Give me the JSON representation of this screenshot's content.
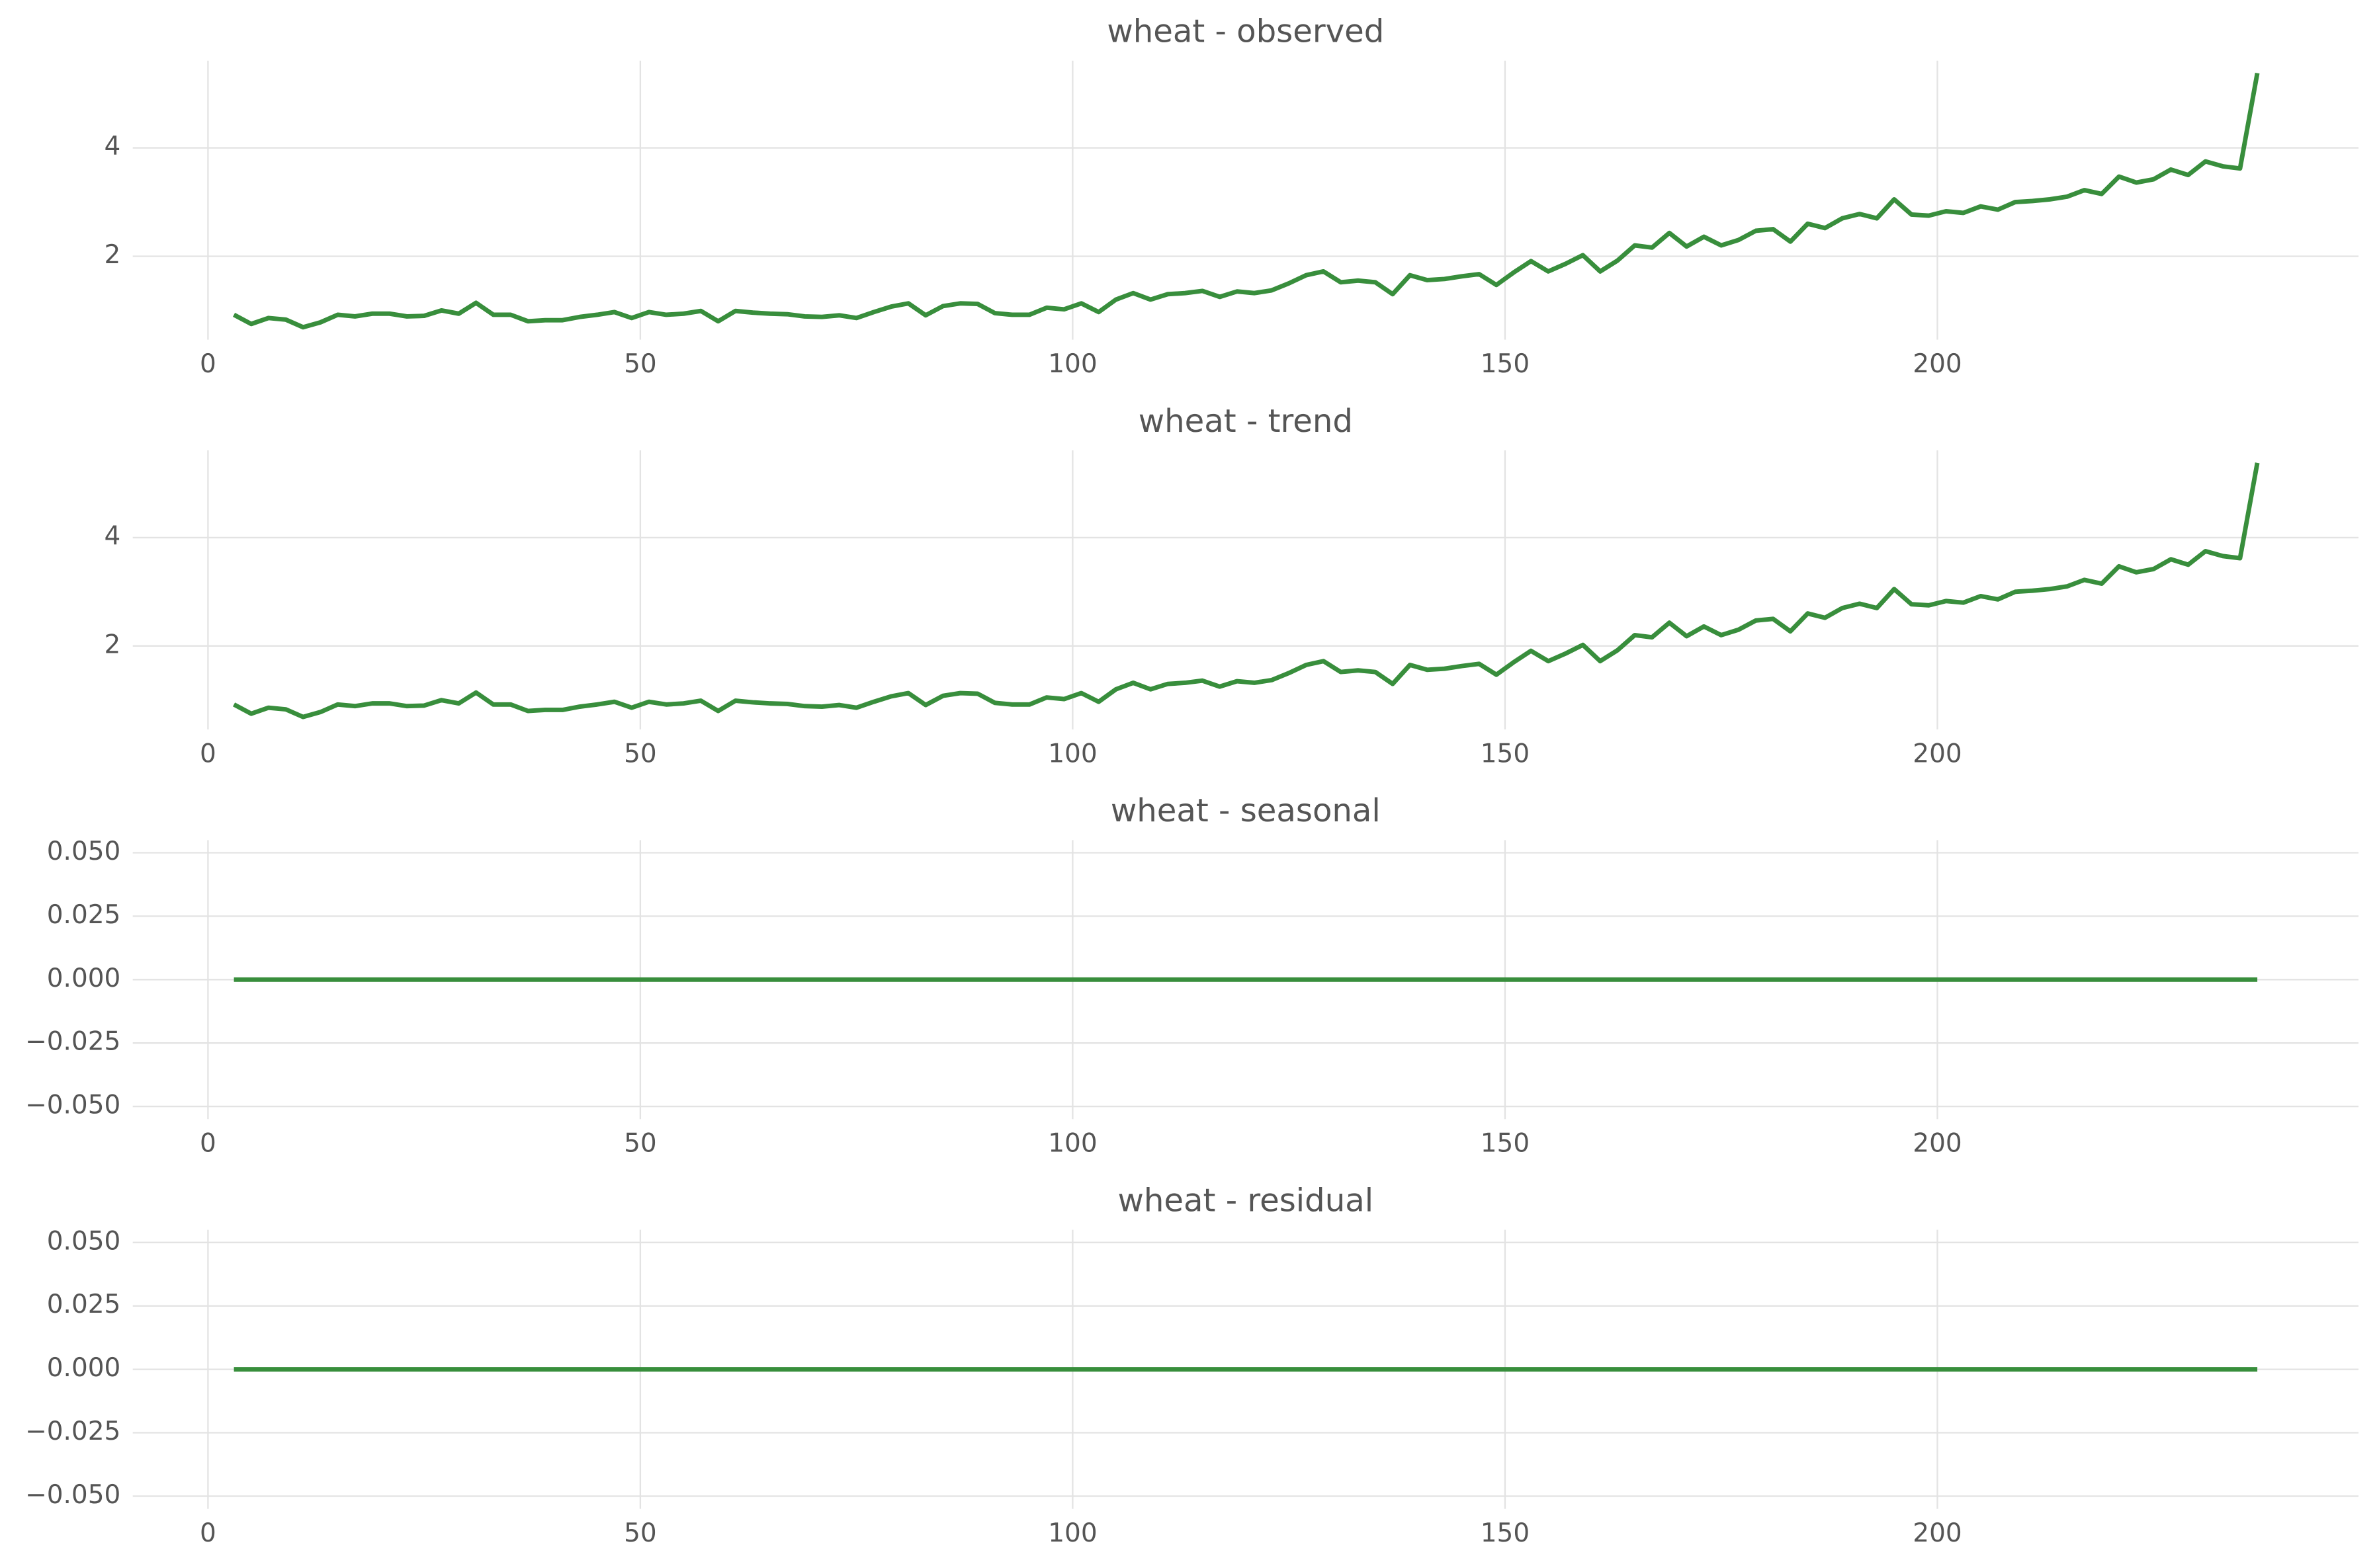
{
  "chart_data": [
    {
      "type": "line",
      "title": "wheat - observed",
      "color": "#388e3c",
      "grid": true,
      "xlim": [
        -8.7,
        248.7
      ],
      "xticks": [
        0,
        50,
        100,
        150,
        200
      ],
      "ylim": [
        0.46,
        5.61
      ],
      "yticks": [
        2,
        4
      ],
      "x": [
        3,
        5,
        7,
        9,
        11,
        13,
        15,
        17,
        19,
        21,
        23,
        25,
        27,
        29,
        31,
        33,
        35,
        37,
        39,
        41,
        43,
        45,
        47,
        49,
        51,
        53,
        55,
        57,
        59,
        61,
        63,
        65,
        67,
        69,
        71,
        73,
        75,
        77,
        79,
        81,
        83,
        85,
        87,
        89,
        91,
        93,
        95,
        97,
        99,
        101,
        103,
        105,
        107,
        109,
        111,
        113,
        115,
        117,
        119,
        121,
        123,
        125,
        127,
        129,
        131,
        133,
        135,
        137,
        139,
        141,
        143,
        145,
        147,
        149,
        151,
        153,
        155,
        157,
        159,
        161,
        163,
        165,
        167,
        169,
        171,
        173,
        175,
        177,
        179,
        181,
        183,
        185,
        187,
        189,
        191,
        193,
        195,
        197,
        199,
        201,
        203,
        205,
        207,
        209,
        211,
        213,
        215,
        217,
        219,
        221,
        223,
        225,
        227,
        229,
        231,
        233,
        235,
        237
      ],
      "values": [
        0.92,
        0.75,
        0.86,
        0.83,
        0.69,
        0.78,
        0.92,
        0.89,
        0.94,
        0.94,
        0.89,
        0.9,
        1.0,
        0.94,
        1.14,
        0.92,
        0.92,
        0.8,
        0.82,
        0.82,
        0.88,
        0.92,
        0.97,
        0.86,
        0.97,
        0.92,
        0.94,
        0.99,
        0.8,
        0.99,
        0.96,
        0.94,
        0.93,
        0.89,
        0.88,
        0.91,
        0.86,
        0.97,
        1.07,
        1.13,
        0.91,
        1.08,
        1.13,
        1.12,
        0.95,
        0.92,
        0.92,
        1.05,
        1.02,
        1.13,
        0.97,
        1.2,
        1.32,
        1.2,
        1.3,
        1.32,
        1.36,
        1.25,
        1.35,
        1.32,
        1.37,
        1.5,
        1.65,
        1.72,
        1.52,
        1.55,
        1.52,
        1.3,
        1.65,
        1.56,
        1.58,
        1.63,
        1.67,
        1.47,
        1.7,
        1.91,
        1.72,
        1.86,
        2.02,
        1.72,
        1.92,
        2.2,
        2.16,
        2.43,
        2.18,
        2.36,
        2.2,
        2.3,
        2.47,
        2.5,
        2.27,
        2.6,
        2.52,
        2.7,
        2.78,
        2.7,
        3.05,
        2.77,
        2.75,
        2.83,
        2.8,
        2.92,
        2.86,
        3.0,
        3.02,
        3.05,
        3.1,
        3.22,
        3.15,
        3.47,
        3.36,
        3.42,
        3.6,
        3.5,
        3.75,
        3.66,
        3.62,
        5.38
      ]
    },
    {
      "type": "line",
      "title": "wheat - trend",
      "color": "#388e3c",
      "grid": true,
      "xlim": [
        -8.7,
        248.7
      ],
      "xticks": [
        0,
        50,
        100,
        150,
        200
      ],
      "ylim": [
        0.46,
        5.61
      ],
      "yticks": [
        2,
        4
      ],
      "x": [
        3,
        5,
        7,
        9,
        11,
        13,
        15,
        17,
        19,
        21,
        23,
        25,
        27,
        29,
        31,
        33,
        35,
        37,
        39,
        41,
        43,
        45,
        47,
        49,
        51,
        53,
        55,
        57,
        59,
        61,
        63,
        65,
        67,
        69,
        71,
        73,
        75,
        77,
        79,
        81,
        83,
        85,
        87,
        89,
        91,
        93,
        95,
        97,
        99,
        101,
        103,
        105,
        107,
        109,
        111,
        113,
        115,
        117,
        119,
        121,
        123,
        125,
        127,
        129,
        131,
        133,
        135,
        137,
        139,
        141,
        143,
        145,
        147,
        149,
        151,
        153,
        155,
        157,
        159,
        161,
        163,
        165,
        167,
        169,
        171,
        173,
        175,
        177,
        179,
        181,
        183,
        185,
        187,
        189,
        191,
        193,
        195,
        197,
        199,
        201,
        203,
        205,
        207,
        209,
        211,
        213,
        215,
        217,
        219,
        221,
        223,
        225,
        227,
        229,
        231,
        233,
        235,
        237
      ],
      "values": [
        0.92,
        0.75,
        0.86,
        0.83,
        0.69,
        0.78,
        0.92,
        0.89,
        0.94,
        0.94,
        0.89,
        0.9,
        1.0,
        0.94,
        1.14,
        0.92,
        0.92,
        0.8,
        0.82,
        0.82,
        0.88,
        0.92,
        0.97,
        0.86,
        0.97,
        0.92,
        0.94,
        0.99,
        0.8,
        0.99,
        0.96,
        0.94,
        0.93,
        0.89,
        0.88,
        0.91,
        0.86,
        0.97,
        1.07,
        1.13,
        0.91,
        1.08,
        1.13,
        1.12,
        0.95,
        0.92,
        0.92,
        1.05,
        1.02,
        1.13,
        0.97,
        1.2,
        1.32,
        1.2,
        1.3,
        1.32,
        1.36,
        1.25,
        1.35,
        1.32,
        1.37,
        1.5,
        1.65,
        1.72,
        1.52,
        1.55,
        1.52,
        1.3,
        1.65,
        1.56,
        1.58,
        1.63,
        1.67,
        1.47,
        1.7,
        1.91,
        1.72,
        1.86,
        2.02,
        1.72,
        1.92,
        2.2,
        2.16,
        2.43,
        2.18,
        2.36,
        2.2,
        2.3,
        2.47,
        2.5,
        2.27,
        2.6,
        2.52,
        2.7,
        2.78,
        2.7,
        3.05,
        2.77,
        2.75,
        2.83,
        2.8,
        2.92,
        2.86,
        3.0,
        3.02,
        3.05,
        3.1,
        3.22,
        3.15,
        3.47,
        3.36,
        3.42,
        3.6,
        3.5,
        3.75,
        3.66,
        3.62,
        5.38
      ]
    },
    {
      "type": "line",
      "title": "wheat - seasonal",
      "color": "#388e3c",
      "grid": true,
      "xlim": [
        -8.7,
        248.7
      ],
      "xticks": [
        0,
        50,
        100,
        150,
        200
      ],
      "ylim": [
        -0.055,
        0.055
      ],
      "yticks": [
        {
          "value": -0.05,
          "label": "−0.050"
        },
        {
          "value": -0.025,
          "label": "−0.025"
        },
        {
          "value": 0,
          "label": "0.000"
        },
        {
          "value": 0.025,
          "label": "0.025"
        },
        {
          "value": 0.05,
          "label": "0.050"
        }
      ],
      "x": [
        3,
        5,
        7,
        9,
        11,
        13,
        15,
        17,
        19,
        21,
        23,
        25,
        27,
        29,
        31,
        33,
        35,
        37,
        39,
        41,
        43,
        45,
        47,
        49,
        51,
        53,
        55,
        57,
        59,
        61,
        63,
        65,
        67,
        69,
        71,
        73,
        75,
        77,
        79,
        81,
        83,
        85,
        87,
        89,
        91,
        93,
        95,
        97,
        99,
        101,
        103,
        105,
        107,
        109,
        111,
        113,
        115,
        117,
        119,
        121,
        123,
        125,
        127,
        129,
        131,
        133,
        135,
        137,
        139,
        141,
        143,
        145,
        147,
        149,
        151,
        153,
        155,
        157,
        159,
        161,
        163,
        165,
        167,
        169,
        171,
        173,
        175,
        177,
        179,
        181,
        183,
        185,
        187,
        189,
        191,
        193,
        195,
        197,
        199,
        201,
        203,
        205,
        207,
        209,
        211,
        213,
        215,
        217,
        219,
        221,
        223,
        225,
        227,
        229,
        231,
        233,
        235,
        237
      ],
      "values": [
        0,
        0,
        0,
        0,
        0,
        0,
        0,
        0,
        0,
        0,
        0,
        0,
        0,
        0,
        0,
        0,
        0,
        0,
        0,
        0,
        0,
        0,
        0,
        0,
        0,
        0,
        0,
        0,
        0,
        0,
        0,
        0,
        0,
        0,
        0,
        0,
        0,
        0,
        0,
        0,
        0,
        0,
        0,
        0,
        0,
        0,
        0,
        0,
        0,
        0,
        0,
        0,
        0,
        0,
        0,
        0,
        0,
        0,
        0,
        0,
        0,
        0,
        0,
        0,
        0,
        0,
        0,
        0,
        0,
        0,
        0,
        0,
        0,
        0,
        0,
        0,
        0,
        0,
        0,
        0,
        0,
        0,
        0,
        0,
        0,
        0,
        0,
        0,
        0,
        0,
        0,
        0,
        0,
        0,
        0,
        0,
        0,
        0,
        0,
        0,
        0,
        0,
        0,
        0,
        0,
        0,
        0,
        0,
        0,
        0,
        0,
        0,
        0,
        0,
        0,
        0,
        0,
        0
      ]
    },
    {
      "type": "line",
      "title": "wheat - residual",
      "color": "#388e3c",
      "grid": true,
      "xlim": [
        -8.7,
        248.7
      ],
      "xticks": [
        0,
        50,
        100,
        150,
        200
      ],
      "ylim": [
        -0.055,
        0.055
      ],
      "yticks": [
        {
          "value": -0.05,
          "label": "−0.050"
        },
        {
          "value": -0.025,
          "label": "−0.025"
        },
        {
          "value": 0,
          "label": "0.000"
        },
        {
          "value": 0.025,
          "label": "0.025"
        },
        {
          "value": 0.05,
          "label": "0.050"
        }
      ],
      "x": [
        3,
        5,
        7,
        9,
        11,
        13,
        15,
        17,
        19,
        21,
        23,
        25,
        27,
        29,
        31,
        33,
        35,
        37,
        39,
        41,
        43,
        45,
        47,
        49,
        51,
        53,
        55,
        57,
        59,
        61,
        63,
        65,
        67,
        69,
        71,
        73,
        75,
        77,
        79,
        81,
        83,
        85,
        87,
        89,
        91,
        93,
        95,
        97,
        99,
        101,
        103,
        105,
        107,
        109,
        111,
        113,
        115,
        117,
        119,
        121,
        123,
        125,
        127,
        129,
        131,
        133,
        135,
        137,
        139,
        141,
        143,
        145,
        147,
        149,
        151,
        153,
        155,
        157,
        159,
        161,
        163,
        165,
        167,
        169,
        171,
        173,
        175,
        177,
        179,
        181,
        183,
        185,
        187,
        189,
        191,
        193,
        195,
        197,
        199,
        201,
        203,
        205,
        207,
        209,
        211,
        213,
        215,
        217,
        219,
        221,
        223,
        225,
        227,
        229,
        231,
        233,
        235,
        237
      ],
      "values": [
        0,
        0,
        0,
        0,
        0,
        0,
        0,
        0,
        0,
        0,
        0,
        0,
        0,
        0,
        0,
        0,
        0,
        0,
        0,
        0,
        0,
        0,
        0,
        0,
        0,
        0,
        0,
        0,
        0,
        0,
        0,
        0,
        0,
        0,
        0,
        0,
        0,
        0,
        0,
        0,
        0,
        0,
        0,
        0,
        0,
        0,
        0,
        0,
        0,
        0,
        0,
        0,
        0,
        0,
        0,
        0,
        0,
        0,
        0,
        0,
        0,
        0,
        0,
        0,
        0,
        0,
        0,
        0,
        0,
        0,
        0,
        0,
        0,
        0,
        0,
        0,
        0,
        0,
        0,
        0,
        0,
        0,
        0,
        0,
        0,
        0,
        0,
        0,
        0,
        0,
        0,
        0,
        0,
        0,
        0,
        0,
        0,
        0,
        0,
        0,
        0,
        0,
        0,
        0,
        0,
        0,
        0,
        0,
        0,
        0,
        0,
        0,
        0,
        0,
        0,
        0,
        0,
        0
      ]
    }
  ]
}
